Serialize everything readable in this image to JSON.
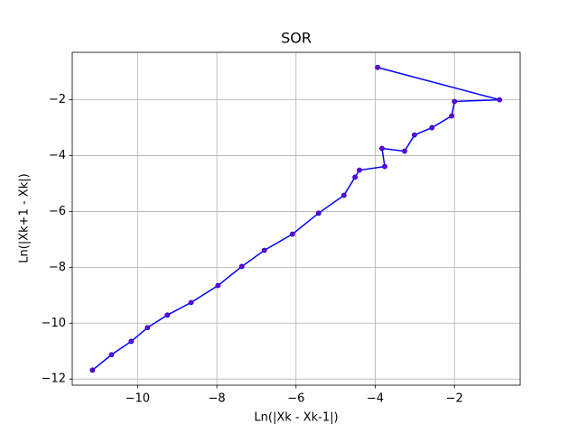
{
  "chart_data": {
    "type": "line",
    "title": "SOR",
    "x_label": "Ln(|Xk - Xk-1|)",
    "y_label": "Ln(|Xk+1 - Xk|)",
    "x": [
      -3.94,
      -0.86,
      -2.0,
      -2.07,
      -2.57,
      -3.01,
      -3.26,
      -3.83,
      -3.76,
      -4.4,
      -4.51,
      -4.79,
      -5.43,
      -6.09,
      -6.8,
      -7.37,
      -7.97,
      -8.65,
      -9.25,
      -9.75,
      -10.16,
      -10.66,
      -11.14
    ],
    "series": [
      {
        "color": "#0000ff",
        "marker_color": "#7a00b8",
        "values": [
          -0.84,
          -2.0,
          -2.06,
          -2.58,
          -3.0,
          -3.26,
          -3.84,
          -3.74,
          -4.39,
          -4.52,
          -4.77,
          -5.42,
          -6.06,
          -6.81,
          -7.39,
          -7.97,
          -8.65,
          -9.26,
          -9.71,
          -10.16,
          -10.65,
          -11.13,
          -11.68
        ]
      }
    ],
    "xlim": [
      -11.65,
      -0.34
    ],
    "ylim": [
      -12.22,
      -0.3
    ],
    "xticks": [
      {
        "value": -10,
        "label": "−10"
      },
      {
        "value": -8,
        "label": "−8"
      },
      {
        "value": -6,
        "label": "−6"
      },
      {
        "value": -4,
        "label": "−4"
      },
      {
        "value": -2,
        "label": "−2"
      }
    ],
    "yticks": [
      {
        "value": -12,
        "label": "−12"
      },
      {
        "value": -10,
        "label": "−10"
      },
      {
        "value": -8,
        "label": "−8"
      },
      {
        "value": -6,
        "label": "−6"
      },
      {
        "value": -4,
        "label": "−4"
      },
      {
        "value": -2,
        "label": "−2"
      }
    ],
    "grid": true
  }
}
